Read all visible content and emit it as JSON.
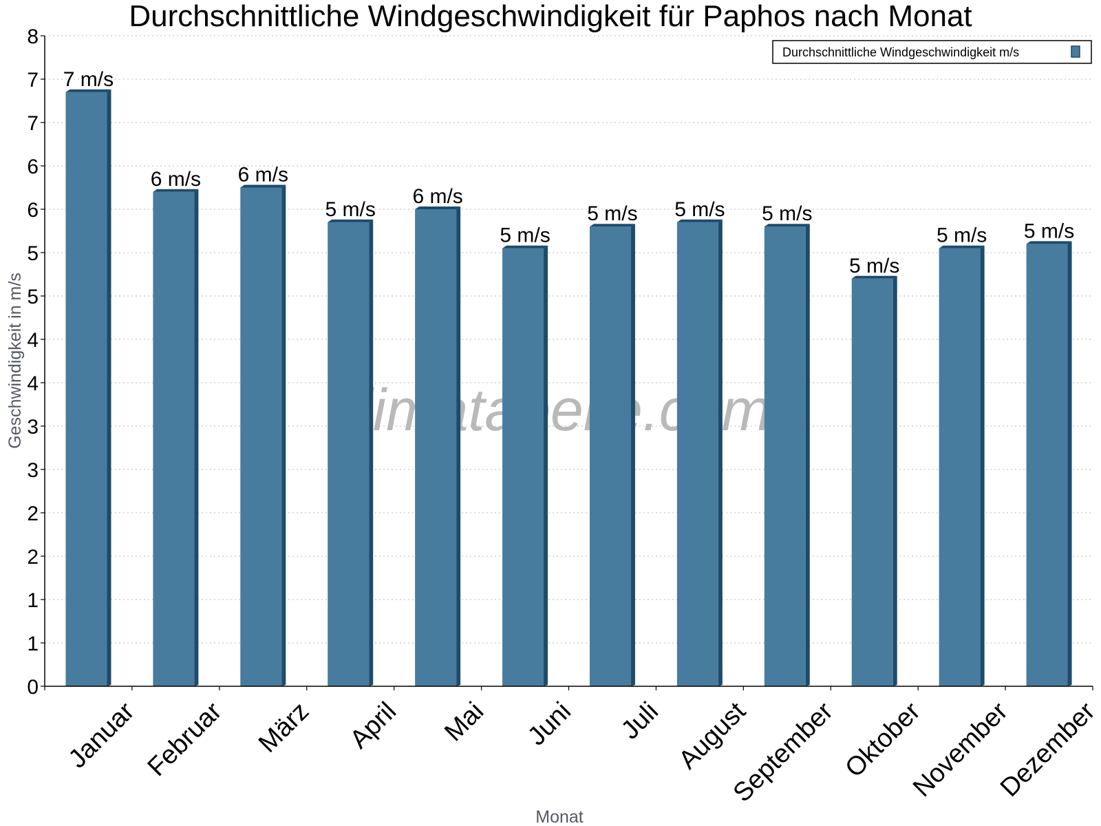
{
  "chart_data": {
    "type": "bar",
    "title": "Durchschnittliche Windgeschwindigkeit für Paphos nach Monat",
    "xlabel": "Monat",
    "ylabel": "Geschwindigkeit in m/s",
    "categories": [
      "Januar",
      "Februar",
      "März",
      "April",
      "Mai",
      "Juni",
      "Juli",
      "August",
      "September",
      "Oktober",
      "November",
      "Dezember"
    ],
    "series": [
      {
        "name": "Durchschnittliche Windgeschwindigkeit m/s",
        "values": [
          6.85,
          5.7,
          5.75,
          5.35,
          5.5,
          5.05,
          5.3,
          5.35,
          5.3,
          4.7,
          5.05,
          5.1
        ],
        "data_labels": [
          "7 m/s",
          "6 m/s",
          "6 m/s",
          "5 m/s",
          "6 m/s",
          "5 m/s",
          "5 m/s",
          "5 m/s",
          "5 m/s",
          "5 m/s",
          "5 m/s",
          "5 m/s"
        ]
      }
    ],
    "ylim": [
      0,
      7.5
    ],
    "yticks": [
      {
        "value": 0,
        "label": "0"
      },
      {
        "value": 0.5,
        "label": "1"
      },
      {
        "value": 1,
        "label": "1"
      },
      {
        "value": 1.5,
        "label": "2"
      },
      {
        "value": 2,
        "label": "2"
      },
      {
        "value": 2.5,
        "label": "3"
      },
      {
        "value": 3,
        "label": "3"
      },
      {
        "value": 3.5,
        "label": "4"
      },
      {
        "value": 4,
        "label": "4"
      },
      {
        "value": 4.5,
        "label": "5"
      },
      {
        "value": 5,
        "label": "5"
      },
      {
        "value": 5.5,
        "label": "6"
      },
      {
        "value": 6,
        "label": "6"
      },
      {
        "value": 6.5,
        "label": "7"
      },
      {
        "value": 7,
        "label": "7"
      },
      {
        "value": 7.5,
        "label": "8"
      }
    ],
    "grid": true,
    "legend_position": "top-right",
    "watermark": "klimatabelle.com",
    "colors": {
      "bar": "#477c9f",
      "bar_side": "#1d4b6b",
      "grid": "#c8c8c8",
      "axis": "#000000",
      "watermark": "#b9b9b9",
      "axis_label": "#555a60"
    }
  }
}
